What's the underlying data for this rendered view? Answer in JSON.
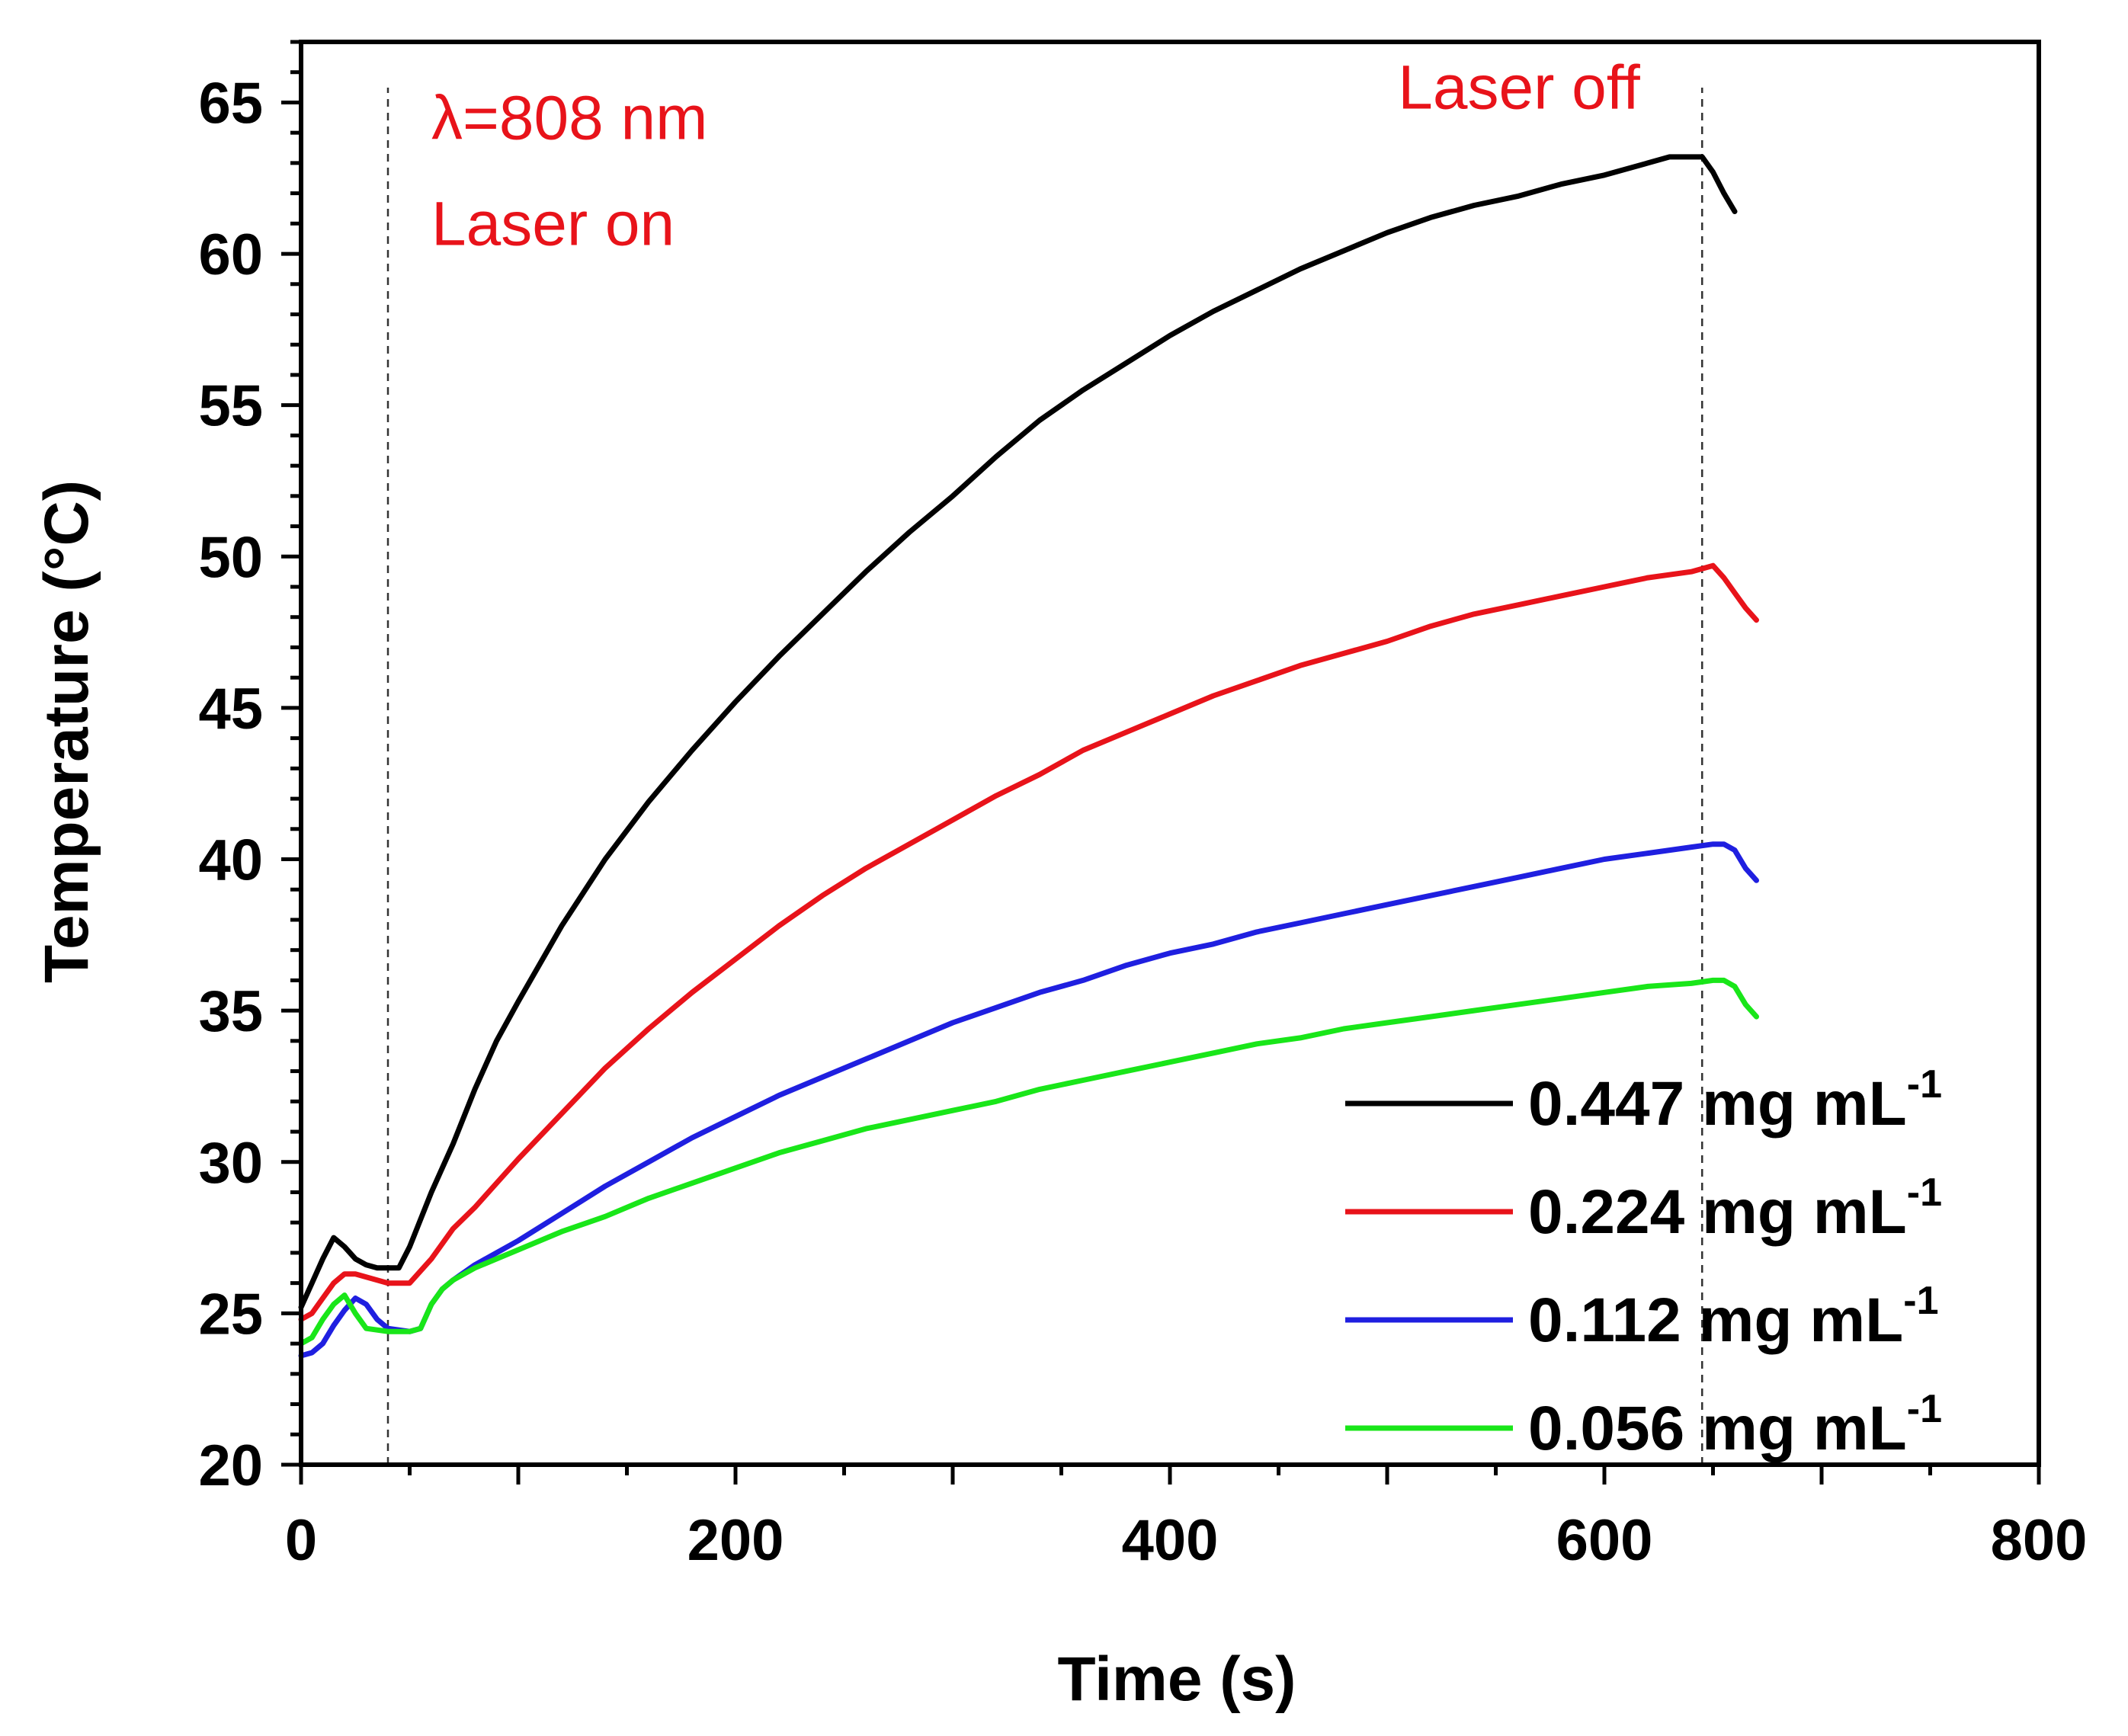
{
  "chart_data": {
    "type": "line",
    "title": "",
    "xlabel": "Time (s)",
    "ylabel": "Temperature (°C)",
    "xlim": [
      0,
      800
    ],
    "ylim": [
      20,
      67
    ],
    "xticks": [
      0,
      200,
      400,
      600,
      800
    ],
    "yticks": [
      20,
      25,
      30,
      35,
      40,
      45,
      50,
      55,
      60,
      65
    ],
    "grid": false,
    "legend_position": "bottom-right",
    "annotations": [
      {
        "text": "λ=808 nm",
        "x": 60,
        "y": 64.5
      },
      {
        "text": "Laser on",
        "x": 60,
        "y": 61
      },
      {
        "text": "Laser off",
        "x": 505,
        "y": 65.5
      }
    ],
    "reference_lines": [
      {
        "orientation": "vertical",
        "x": 40,
        "style": "dashed"
      },
      {
        "orientation": "vertical",
        "x": 645,
        "style": "dashed"
      }
    ],
    "series": [
      {
        "name": "0.447 mg mL",
        "superscript": "-1",
        "color": "#000000",
        "x": [
          0,
          5,
          10,
          15,
          20,
          25,
          30,
          35,
          40,
          45,
          50,
          60,
          70,
          80,
          90,
          100,
          120,
          140,
          160,
          180,
          200,
          220,
          240,
          260,
          280,
          300,
          320,
          340,
          360,
          380,
          400,
          420,
          440,
          460,
          480,
          500,
          520,
          540,
          560,
          580,
          600,
          620,
          630,
          640,
          645,
          650,
          655,
          660
        ],
        "y": [
          25.2,
          26.0,
          26.8,
          27.5,
          27.2,
          26.8,
          26.6,
          26.5,
          26.5,
          26.5,
          27.2,
          29.0,
          30.6,
          32.4,
          34.0,
          35.3,
          37.8,
          40.0,
          41.9,
          43.6,
          45.2,
          46.7,
          48.1,
          49.5,
          50.8,
          52.0,
          53.3,
          54.5,
          55.5,
          56.4,
          57.3,
          58.1,
          58.8,
          59.5,
          60.1,
          60.7,
          61.2,
          61.6,
          61.9,
          62.3,
          62.6,
          63.0,
          63.2,
          63.2,
          63.2,
          62.7,
          62.0,
          61.4
        ]
      },
      {
        "name": "0.224 mg mL",
        "superscript": "-1",
        "color": "#e8131a",
        "x": [
          0,
          5,
          10,
          15,
          20,
          25,
          30,
          40,
          50,
          60,
          70,
          80,
          90,
          100,
          120,
          140,
          160,
          180,
          200,
          220,
          240,
          260,
          280,
          300,
          320,
          340,
          360,
          380,
          400,
          420,
          440,
          460,
          480,
          500,
          520,
          540,
          560,
          580,
          600,
          620,
          640,
          645,
          650,
          655,
          660,
          665,
          670
        ],
        "y": [
          24.8,
          25.0,
          25.5,
          26.0,
          26.3,
          26.3,
          26.2,
          26.0,
          26.0,
          26.8,
          27.8,
          28.5,
          29.3,
          30.1,
          31.6,
          33.1,
          34.4,
          35.6,
          36.7,
          37.8,
          38.8,
          39.7,
          40.5,
          41.3,
          42.1,
          42.8,
          43.6,
          44.2,
          44.8,
          45.4,
          45.9,
          46.4,
          46.8,
          47.2,
          47.7,
          48.1,
          48.4,
          48.7,
          49.0,
          49.3,
          49.5,
          49.6,
          49.7,
          49.3,
          48.8,
          48.3,
          47.9
        ]
      },
      {
        "name": "0.112 mg mL",
        "superscript": "-1",
        "color": "#1f1fe0",
        "x": [
          0,
          5,
          10,
          15,
          20,
          25,
          30,
          35,
          40,
          50,
          55,
          60,
          65,
          70,
          80,
          90,
          100,
          120,
          140,
          160,
          180,
          200,
          220,
          240,
          260,
          280,
          300,
          320,
          340,
          360,
          380,
          400,
          420,
          440,
          460,
          480,
          500,
          520,
          540,
          560,
          580,
          600,
          620,
          640,
          650,
          655,
          660,
          665,
          670
        ],
        "y": [
          23.6,
          23.7,
          24.0,
          24.6,
          25.1,
          25.5,
          25.3,
          24.8,
          24.5,
          24.4,
          24.5,
          25.3,
          25.8,
          26.1,
          26.6,
          27.0,
          27.4,
          28.3,
          29.2,
          30.0,
          30.8,
          31.5,
          32.2,
          32.8,
          33.4,
          34.0,
          34.6,
          35.1,
          35.6,
          36.0,
          36.5,
          36.9,
          37.2,
          37.6,
          37.9,
          38.2,
          38.5,
          38.8,
          39.1,
          39.4,
          39.7,
          40.0,
          40.2,
          40.4,
          40.5,
          40.5,
          40.3,
          39.7,
          39.3
        ]
      },
      {
        "name": "0.056 mg mL",
        "superscript": "-1",
        "color": "#19e619",
        "x": [
          0,
          5,
          10,
          15,
          20,
          25,
          30,
          40,
          50,
          55,
          60,
          65,
          70,
          80,
          90,
          100,
          120,
          140,
          160,
          180,
          200,
          220,
          240,
          260,
          280,
          300,
          320,
          340,
          360,
          380,
          400,
          420,
          440,
          460,
          480,
          500,
          520,
          540,
          560,
          580,
          600,
          620,
          640,
          650,
          655,
          660,
          665,
          670
        ],
        "y": [
          24.0,
          24.2,
          24.8,
          25.3,
          25.6,
          25.0,
          24.5,
          24.4,
          24.4,
          24.5,
          25.3,
          25.8,
          26.1,
          26.5,
          26.8,
          27.1,
          27.7,
          28.2,
          28.8,
          29.3,
          29.8,
          30.3,
          30.7,
          31.1,
          31.4,
          31.7,
          32.0,
          32.4,
          32.7,
          33.0,
          33.3,
          33.6,
          33.9,
          34.1,
          34.4,
          34.6,
          34.8,
          35.0,
          35.2,
          35.4,
          35.6,
          35.8,
          35.9,
          36.0,
          36.0,
          35.8,
          35.2,
          34.8
        ]
      }
    ]
  }
}
